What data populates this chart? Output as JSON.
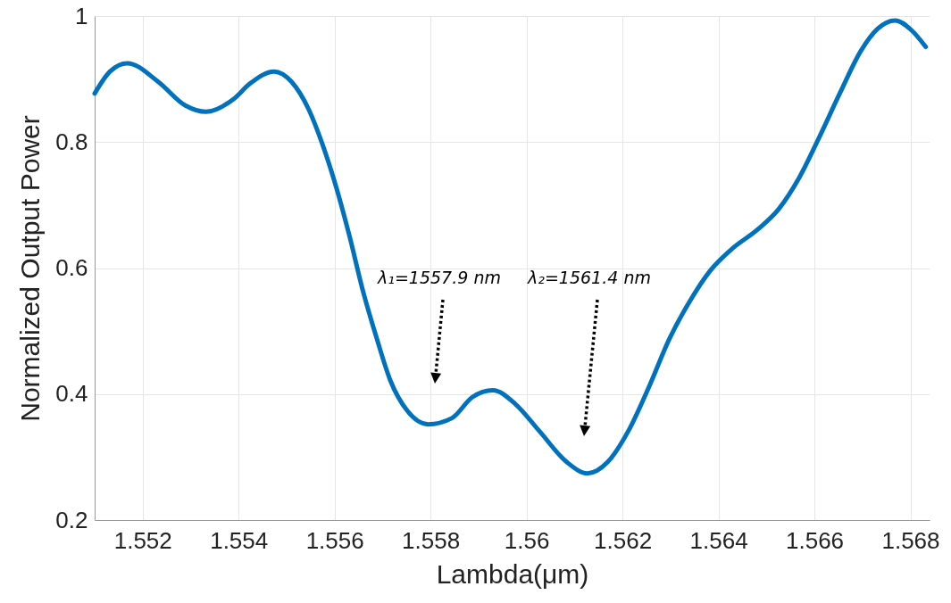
{
  "chart_data": {
    "type": "line",
    "xlabel": "Lambda(μm)",
    "ylabel": "Normalized Output Power",
    "x": [
      1.551,
      1.55132,
      1.55168,
      1.55232,
      1.55289,
      1.55332,
      1.55389,
      1.55424,
      1.55474,
      1.5551,
      1.55546,
      1.55574,
      1.55602,
      1.55631,
      1.55659,
      1.55688,
      1.55716,
      1.55752,
      1.55795,
      1.55845,
      1.55887,
      1.5593,
      1.55977,
      1.56027,
      1.56084,
      1.56127,
      1.56169,
      1.56212,
      1.56255,
      1.56298,
      1.5634,
      1.56383,
      1.56426,
      1.56483,
      1.56526,
      1.56568,
      1.56611,
      1.56654,
      1.56697,
      1.56732,
      1.56768,
      1.56803,
      1.56832
    ],
    "series": [
      {
        "color": "#0072bd",
        "values": [
          0.877,
          0.912,
          0.925,
          0.896,
          0.858,
          0.848,
          0.868,
          0.893,
          0.912,
          0.896,
          0.852,
          0.798,
          0.732,
          0.651,
          0.564,
          0.488,
          0.422,
          0.373,
          0.352,
          0.362,
          0.395,
          0.406,
          0.384,
          0.341,
          0.292,
          0.274,
          0.292,
          0.341,
          0.411,
          0.488,
          0.547,
          0.596,
          0.629,
          0.662,
          0.694,
          0.743,
          0.809,
          0.879,
          0.945,
          0.98,
          0.993,
          0.977,
          0.951
        ]
      }
    ],
    "xlim": [
      1.551,
      1.5684
    ],
    "ylim": [
      0.2,
      1
    ],
    "xticks": [
      1.552,
      1.554,
      1.556,
      1.558,
      1.56,
      1.562,
      1.564,
      1.566,
      1.568
    ],
    "yticks": [
      0.2,
      0.4,
      0.6,
      0.8,
      1
    ],
    "grid": true,
    "annotations": [
      "λ₁=1557.9 nm",
      "λ₂=1561.4 nm"
    ]
  }
}
